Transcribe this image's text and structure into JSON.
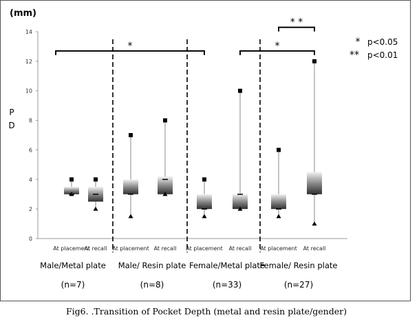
{
  "caption": "Fig6. .Transition of Pocket Depth (metal and resin plate/gender)",
  "chart_data": {
    "type": "boxplot",
    "yunit": "(mm)",
    "ylabel": "P D",
    "ylim": [
      0,
      14
    ],
    "yticks": [
      0,
      2,
      4,
      6,
      8,
      10,
      12,
      14
    ],
    "groups": [
      {
        "name": "Male/Metal plate",
        "n": "(n=7)"
      },
      {
        "name": "Male/ Resin plate",
        "n": "(n=8)"
      },
      {
        "name": "Female/Metal plate",
        "n": "(n=33)"
      },
      {
        "name": "Female/ Resin plate",
        "n": "(n=27)"
      }
    ],
    "boxes": [
      {
        "label": "At placement",
        "max": 4,
        "q3": 3.5,
        "median": 3,
        "q1": 3,
        "min": 3
      },
      {
        "label": "At recall",
        "max": 4,
        "q3": 3.5,
        "median": 3,
        "q1": 2.5,
        "min": 2
      },
      {
        "label": "At placement",
        "max": 7,
        "q3": 4,
        "median": 3,
        "q1": 3,
        "min": 1.5
      },
      {
        "label": "At recall",
        "max": 8,
        "q3": 4.2,
        "median": 4,
        "q1": 3,
        "min": 3
      },
      {
        "label": "At placement",
        "max": 4,
        "q3": 3,
        "median": 2,
        "q1": 2,
        "min": 1.5
      },
      {
        "label": "At recall",
        "max": 10,
        "q3": 3,
        "median": 3,
        "q1": 2,
        "min": 2
      },
      {
        "label": "At placement",
        "max": 6,
        "q3": 3,
        "median": 2,
        "q1": 2,
        "min": 1.5
      },
      {
        "label": "At recall",
        "max": 12,
        "q3": 4.5,
        "median": 3,
        "q1": 3,
        "min": 1
      }
    ],
    "significance": [
      {
        "from_box": 0,
        "to_box": 4,
        "symbol": "*",
        "y": 12.7
      },
      {
        "from_box": 5,
        "to_box": 7,
        "symbol": "*",
        "y": 12.7
      },
      {
        "from_box": 6,
        "to_box": 7,
        "symbol": "* *",
        "y": 14.3
      }
    ],
    "legend": [
      {
        "symbol": "*",
        "text": "p<0.05"
      },
      {
        "symbol": "**",
        "text": "p<0.01"
      }
    ]
  }
}
